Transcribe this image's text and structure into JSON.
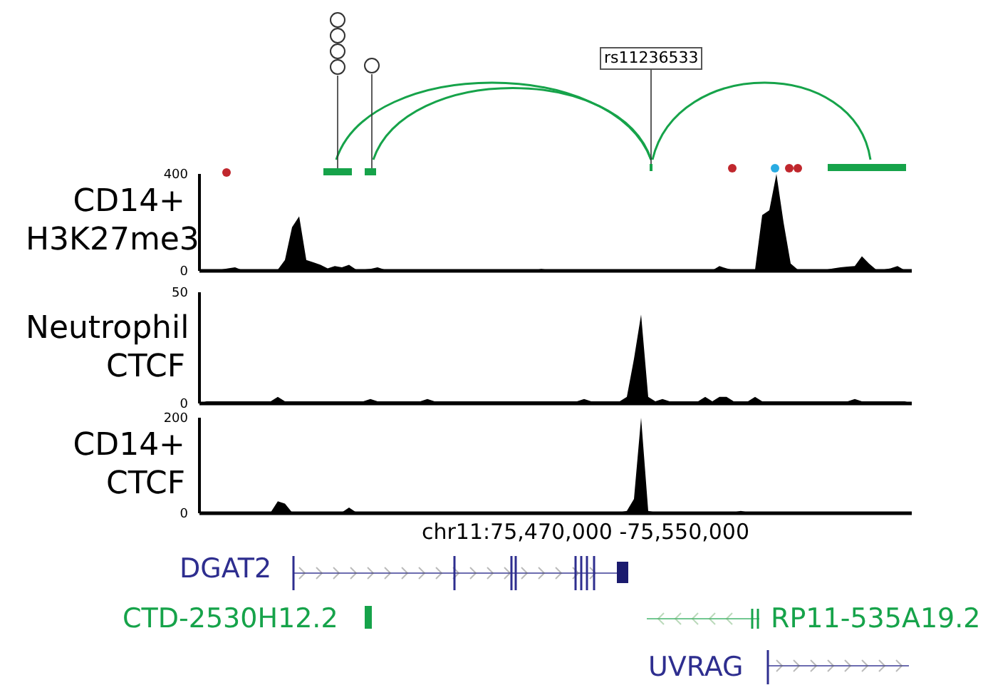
{
  "chart_data": [
    {
      "type": "area",
      "ylabel": "CD14+ H3K27me3",
      "annotations": [
        "rs11236533"
      ],
      "ylim": [
        0,
        400
      ],
      "yticks": [
        0,
        400
      ],
      "tick_labels": "y",
      "categories": [
        null,
        null,
        null,
        null,
        null,
        null,
        null,
        null,
        null,
        null,
        null,
        null,
        null,
        null,
        null,
        null,
        null,
        null,
        null,
        null,
        null,
        null,
        null,
        null,
        null,
        null,
        null,
        null,
        null,
        null,
        null,
        null,
        null,
        null,
        null,
        null,
        null,
        null,
        null,
        null,
        null,
        null,
        null,
        null,
        null,
        null,
        null,
        null,
        null,
        null,
        null,
        null,
        null,
        null,
        null,
        null,
        null,
        null,
        null,
        null,
        null,
        null,
        null,
        null,
        null,
        null,
        null,
        null,
        null,
        null,
        null,
        null,
        null,
        null,
        null,
        null,
        null,
        null,
        null,
        null,
        null,
        null,
        null,
        null,
        null,
        null,
        null,
        null,
        null,
        null,
        null,
        null,
        null,
        null,
        null,
        null,
        null,
        null,
        null,
        null,
        null
      ],
      "series": [
        {
          "color": "#000000",
          "values": [
            0,
            3,
            5,
            5,
            10,
            15,
            3,
            3,
            3,
            3,
            3,
            5,
            45,
            180,
            225,
            45,
            35,
            25,
            10,
            20,
            15,
            25,
            5,
            5,
            8,
            15,
            5,
            3,
            3,
            2,
            2,
            2,
            2,
            2,
            2,
            2,
            2,
            2,
            2,
            2,
            2,
            2,
            2,
            2,
            2,
            2,
            2,
            2,
            8,
            3,
            2,
            2,
            2,
            2,
            2,
            2,
            2,
            2,
            2,
            2,
            2,
            2,
            2,
            2,
            2,
            2,
            2,
            2,
            2,
            2,
            2,
            2,
            2,
            20,
            10,
            3,
            3,
            3,
            5,
            230,
            250,
            400,
            200,
            30,
            5,
            5,
            5,
            5,
            5,
            10,
            15,
            18,
            20,
            60,
            30,
            5,
            5,
            10,
            20,
            3,
            0
          ]
        }
      ]
    },
    {
      "type": "area",
      "ylabel": "Neutrophil CTCF",
      "ylim": [
        0,
        50
      ],
      "yticks": [
        0,
        50
      ],
      "tick_labels": "y",
      "categories": [
        null,
        null,
        null,
        null,
        null,
        null,
        null,
        null,
        null,
        null,
        null,
        null,
        null,
        null,
        null,
        null,
        null,
        null,
        null,
        null,
        null,
        null,
        null,
        null,
        null,
        null,
        null,
        null,
        null,
        null,
        null,
        null,
        null,
        null,
        null,
        null,
        null,
        null,
        null,
        null,
        null,
        null,
        null,
        null,
        null,
        null,
        null,
        null,
        null,
        null,
        null,
        null,
        null,
        null,
        null,
        null,
        null,
        null,
        null,
        null,
        null,
        null,
        null,
        null,
        null,
        null,
        null,
        null,
        null,
        null,
        null,
        null,
        null,
        null,
        null,
        null,
        null,
        null,
        null,
        null,
        null,
        null,
        null,
        null,
        null,
        null,
        null,
        null,
        null,
        null,
        null,
        null,
        null,
        null,
        null,
        null,
        null,
        null,
        null,
        null,
        null
      ],
      "series": [
        {
          "color": "#000000",
          "values": [
            0,
            1,
            1,
            1,
            1,
            1,
            1,
            1,
            1,
            1,
            1,
            3,
            1,
            1,
            1,
            1,
            1,
            1,
            1,
            1,
            1,
            1,
            1,
            1,
            2,
            1,
            1,
            1,
            1,
            1,
            1,
            1,
            2,
            1,
            1,
            1,
            1,
            1,
            1,
            1,
            1,
            1,
            1,
            1,
            1,
            1,
            1,
            1,
            1,
            1,
            1,
            1,
            1,
            1,
            2,
            1,
            1,
            1,
            1,
            1,
            3,
            20,
            40,
            3,
            1,
            2,
            1,
            1,
            1,
            1,
            1,
            3,
            1,
            3,
            3,
            1,
            1,
            1,
            3,
            1,
            1,
            1,
            1,
            1,
            1,
            1,
            1,
            1,
            1,
            1,
            1,
            1,
            2,
            1,
            1,
            1,
            1,
            1,
            1,
            1,
            0
          ]
        }
      ]
    },
    {
      "type": "area",
      "ylabel": "CD14+ CTCF",
      "xlabel": "chr11:75,470,000 -75,550,000",
      "annotations": [
        "DGAT2",
        "CTD-2530H12.2",
        "RP11-535A19.2",
        "UVRAG"
      ],
      "ylim": [
        0,
        200
      ],
      "yticks": [
        0,
        200
      ],
      "tick_labels": "y",
      "categories": [
        null,
        null,
        null,
        null,
        null,
        null,
        null,
        null,
        null,
        null,
        null,
        null,
        null,
        null,
        null,
        null,
        null,
        null,
        null,
        null,
        null,
        null,
        null,
        null,
        null,
        null,
        null,
        null,
        null,
        null,
        null,
        null,
        null,
        null,
        null,
        null,
        null,
        null,
        null,
        null,
        null,
        null,
        null,
        null,
        null,
        null,
        null,
        null,
        null,
        null,
        null,
        null,
        null,
        null,
        null,
        null,
        null,
        null,
        null,
        null,
        null,
        null,
        null,
        null,
        null,
        null,
        null,
        null,
        null,
        null,
        null,
        null,
        null,
        null,
        null,
        null,
        null,
        null,
        null,
        null,
        null,
        null,
        null,
        null,
        null,
        null,
        null,
        null,
        null,
        null,
        null,
        null,
        null,
        null,
        null,
        null,
        null,
        null,
        null,
        null,
        null
      ],
      "series": [
        {
          "color": "#000000",
          "values": [
            0,
            2,
            2,
            2,
            2,
            2,
            2,
            2,
            2,
            2,
            2,
            25,
            20,
            2,
            2,
            2,
            2,
            2,
            2,
            2,
            2,
            12,
            2,
            2,
            2,
            2,
            2,
            2,
            2,
            2,
            2,
            2,
            2,
            2,
            2,
            2,
            2,
            2,
            2,
            2,
            2,
            2,
            2,
            2,
            2,
            2,
            2,
            2,
            2,
            2,
            2,
            2,
            2,
            2,
            2,
            2,
            2,
            2,
            2,
            2,
            5,
            30,
            200,
            5,
            2,
            2,
            2,
            2,
            2,
            2,
            2,
            2,
            2,
            2,
            2,
            2,
            5,
            2,
            2,
            2,
            2,
            2,
            2,
            2,
            2,
            2,
            2,
            2,
            2,
            2,
            2,
            2,
            2,
            2,
            2,
            2,
            2,
            2,
            2,
            2,
            0
          ]
        }
      ]
    }
  ]
}
